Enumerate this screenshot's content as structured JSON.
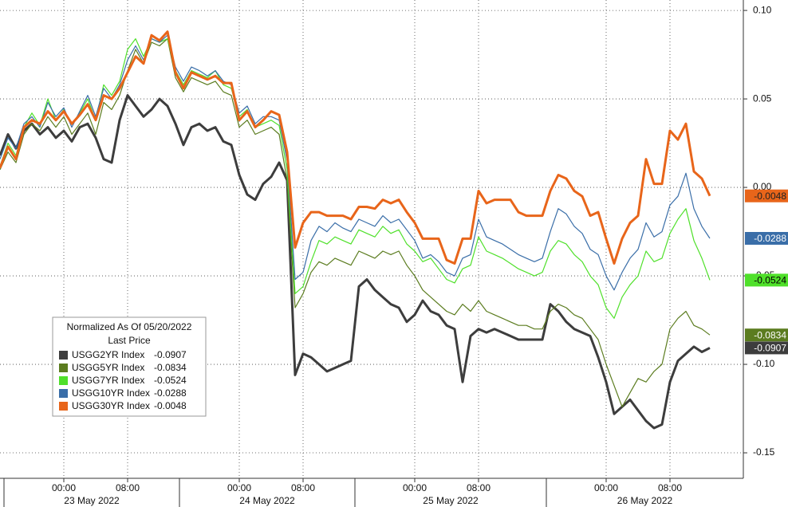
{
  "chart_data": {
    "type": "line",
    "legend_title": "Normalized As Of 05/20/2022",
    "legend_subtitle": "Last Price",
    "legend": "lower-left",
    "grid": true,
    "categories": [
      null,
      null,
      null,
      null,
      null,
      null,
      null,
      null,
      "00:00",
      null,
      null,
      null,
      null,
      null,
      null,
      null,
      "08:00",
      null,
      null,
      null,
      null,
      null,
      null,
      null,
      null,
      null,
      null,
      null,
      null,
      null,
      "00:00",
      null,
      null,
      null,
      null,
      null,
      null,
      null,
      "08:00",
      null,
      null,
      null,
      null,
      null,
      null,
      null,
      null,
      null,
      null,
      null,
      null,
      null,
      "00:00",
      null,
      null,
      null,
      null,
      null,
      null,
      null,
      "08:00",
      null,
      null,
      null,
      null,
      null,
      null,
      null,
      null,
      null,
      null,
      null,
      null,
      null,
      null,
      null,
      "00:00",
      null,
      null,
      null,
      null,
      null,
      null,
      null,
      "08:00",
      null,
      null,
      null,
      null,
      null
    ],
    "days": [
      "23 May 2022",
      "24 May 2022",
      "25 May 2022",
      "26 May 2022"
    ],
    "ylim": [
      -0.1644,
      0.1059
    ],
    "yticks": [
      {
        "value": 0.1,
        "label": "0.10"
      },
      0.05,
      {
        "value": 0,
        "label": "0.00"
      },
      -0.05,
      {
        "value": -0.1,
        "label": "-0.10"
      },
      -0.15
    ],
    "series": [
      {
        "name": "USGG2YR Index",
        "color": "#3d3d3d",
        "width": 3,
        "values": [
          0.018,
          0.03,
          0.022,
          0.032,
          0.036,
          0.03,
          0.034,
          0.028,
          0.032,
          0.026,
          0.034,
          0.036,
          0.028,
          0.016,
          0.014,
          0.038,
          0.052,
          0.046,
          0.04,
          0.044,
          0.05,
          0.046,
          0.036,
          0.024,
          0.034,
          0.036,
          0.032,
          0.034,
          0.026,
          0.024,
          0.007,
          -0.004,
          -0.007,
          0.002,
          0.006,
          0.014,
          0.004,
          -0.106,
          -0.094,
          -0.096,
          -0.1,
          -0.104,
          -0.102,
          -0.1,
          -0.098,
          -0.056,
          -0.052,
          -0.058,
          -0.062,
          -0.066,
          -0.068,
          -0.076,
          -0.072,
          -0.064,
          -0.07,
          -0.072,
          -0.078,
          -0.08,
          -0.11,
          -0.084,
          -0.08,
          -0.082,
          -0.08,
          -0.082,
          -0.084,
          -0.086,
          -0.086,
          -0.086,
          -0.086,
          -0.066,
          -0.07,
          -0.076,
          -0.08,
          -0.082,
          -0.084,
          -0.096,
          -0.11,
          -0.128,
          -0.124,
          -0.12,
          -0.126,
          -0.132,
          -0.136,
          -0.134,
          -0.11,
          -0.098,
          -0.094,
          -0.09,
          -0.093,
          -0.0907
        ],
        "tag_text": "#ffffff"
      },
      {
        "name": "USGG5YR Index",
        "color": "#5b7c1f",
        "width": 1.2,
        "values": [
          0.01,
          0.02,
          0.014,
          0.03,
          0.036,
          0.032,
          0.04,
          0.034,
          0.04,
          0.03,
          0.036,
          0.042,
          0.03,
          0.048,
          0.044,
          0.052,
          0.066,
          0.078,
          0.07,
          0.082,
          0.08,
          0.084,
          0.062,
          0.054,
          0.062,
          0.06,
          0.058,
          0.06,
          0.054,
          0.052,
          0.034,
          0.038,
          0.03,
          0.032,
          0.034,
          0.03,
          0.004,
          -0.068,
          -0.06,
          -0.048,
          -0.042,
          -0.044,
          -0.04,
          -0.042,
          -0.044,
          -0.036,
          -0.038,
          -0.04,
          -0.036,
          -0.038,
          -0.036,
          -0.044,
          -0.05,
          -0.058,
          -0.062,
          -0.066,
          -0.07,
          -0.072,
          -0.066,
          -0.07,
          -0.064,
          -0.07,
          -0.072,
          -0.074,
          -0.076,
          -0.078,
          -0.078,
          -0.08,
          -0.08,
          -0.07,
          -0.066,
          -0.068,
          -0.072,
          -0.074,
          -0.08,
          -0.086,
          -0.1,
          -0.112,
          -0.124,
          -0.116,
          -0.108,
          -0.11,
          -0.104,
          -0.1,
          -0.08,
          -0.074,
          -0.07,
          -0.078,
          -0.08,
          -0.0834
        ],
        "tag_text": "#ffffff"
      },
      {
        "name": "USGG7YR Index",
        "color": "#4fe02a",
        "width": 1.2,
        "values": [
          0.012,
          0.025,
          0.018,
          0.034,
          0.042,
          0.035,
          0.05,
          0.038,
          0.044,
          0.036,
          0.042,
          0.05,
          0.038,
          0.058,
          0.052,
          0.06,
          0.078,
          0.084,
          0.074,
          0.084,
          0.082,
          0.084,
          0.066,
          0.058,
          0.066,
          0.064,
          0.062,
          0.066,
          0.058,
          0.056,
          0.04,
          0.044,
          0.034,
          0.036,
          0.038,
          0.035,
          0.01,
          -0.06,
          -0.056,
          -0.042,
          -0.03,
          -0.032,
          -0.028,
          -0.03,
          -0.032,
          -0.024,
          -0.026,
          -0.028,
          -0.022,
          -0.026,
          -0.024,
          -0.032,
          -0.036,
          -0.042,
          -0.04,
          -0.046,
          -0.052,
          -0.054,
          -0.046,
          -0.044,
          -0.028,
          -0.036,
          -0.038,
          -0.04,
          -0.043,
          -0.046,
          -0.048,
          -0.05,
          -0.048,
          -0.036,
          -0.03,
          -0.032,
          -0.038,
          -0.042,
          -0.05,
          -0.055,
          -0.068,
          -0.074,
          -0.062,
          -0.055,
          -0.05,
          -0.036,
          -0.042,
          -0.04,
          -0.026,
          -0.018,
          -0.012,
          -0.03,
          -0.04,
          -0.0524
        ],
        "tag_text": "#000000"
      },
      {
        "name": "USGG10YR Index",
        "color": "#3a6ea8",
        "width": 1.2,
        "values": [
          0.016,
          0.028,
          0.022,
          0.036,
          0.04,
          0.034,
          0.048,
          0.04,
          0.045,
          0.034,
          0.043,
          0.052,
          0.04,
          0.056,
          0.05,
          0.058,
          0.072,
          0.08,
          0.072,
          0.084,
          0.082,
          0.086,
          0.068,
          0.06,
          0.068,
          0.066,
          0.063,
          0.066,
          0.06,
          0.058,
          0.042,
          0.046,
          0.036,
          0.04,
          0.04,
          0.038,
          0.015,
          -0.052,
          -0.048,
          -0.03,
          -0.022,
          -0.025,
          -0.02,
          -0.023,
          -0.025,
          -0.018,
          -0.02,
          -0.022,
          -0.016,
          -0.02,
          -0.018,
          -0.024,
          -0.03,
          -0.04,
          -0.038,
          -0.042,
          -0.048,
          -0.05,
          -0.04,
          -0.038,
          -0.018,
          -0.028,
          -0.03,
          -0.032,
          -0.035,
          -0.038,
          -0.04,
          -0.042,
          -0.04,
          -0.025,
          -0.012,
          -0.015,
          -0.022,
          -0.026,
          -0.035,
          -0.038,
          -0.05,
          -0.058,
          -0.048,
          -0.04,
          -0.035,
          -0.02,
          -0.028,
          -0.025,
          -0.01,
          -0.005,
          0.008,
          -0.012,
          -0.022,
          -0.0288
        ],
        "tag_text": "#ffffff"
      },
      {
        "name": "USGG30YR Index",
        "color": "#e8651a",
        "width": 3,
        "values": [
          0.011,
          0.023,
          0.016,
          0.034,
          0.038,
          0.036,
          0.043,
          0.038,
          0.043,
          0.036,
          0.041,
          0.047,
          0.038,
          0.052,
          0.05,
          0.056,
          0.065,
          0.074,
          0.07,
          0.086,
          0.083,
          0.088,
          0.065,
          0.056,
          0.065,
          0.063,
          0.061,
          0.063,
          0.059,
          0.059,
          0.038,
          0.043,
          0.034,
          0.038,
          0.043,
          0.041,
          0.02,
          -0.034,
          -0.02,
          -0.014,
          -0.014,
          -0.016,
          -0.016,
          -0.016,
          -0.018,
          -0.011,
          -0.011,
          -0.012,
          -0.007,
          -0.009,
          -0.007,
          -0.014,
          -0.02,
          -0.029,
          -0.029,
          -0.029,
          -0.041,
          -0.043,
          -0.029,
          -0.029,
          -0.002,
          -0.009,
          -0.007,
          -0.007,
          -0.007,
          -0.014,
          -0.016,
          -0.016,
          -0.016,
          -0.002,
          0.007,
          0.005,
          -0.002,
          -0.005,
          -0.016,
          -0.014,
          -0.029,
          -0.043,
          -0.029,
          -0.02,
          -0.016,
          0.016,
          0.002,
          0.002,
          0.032,
          0.027,
          0.036,
          0.009,
          0.005,
          -0.0048
        ],
        "tag_text": "#222222"
      }
    ]
  }
}
